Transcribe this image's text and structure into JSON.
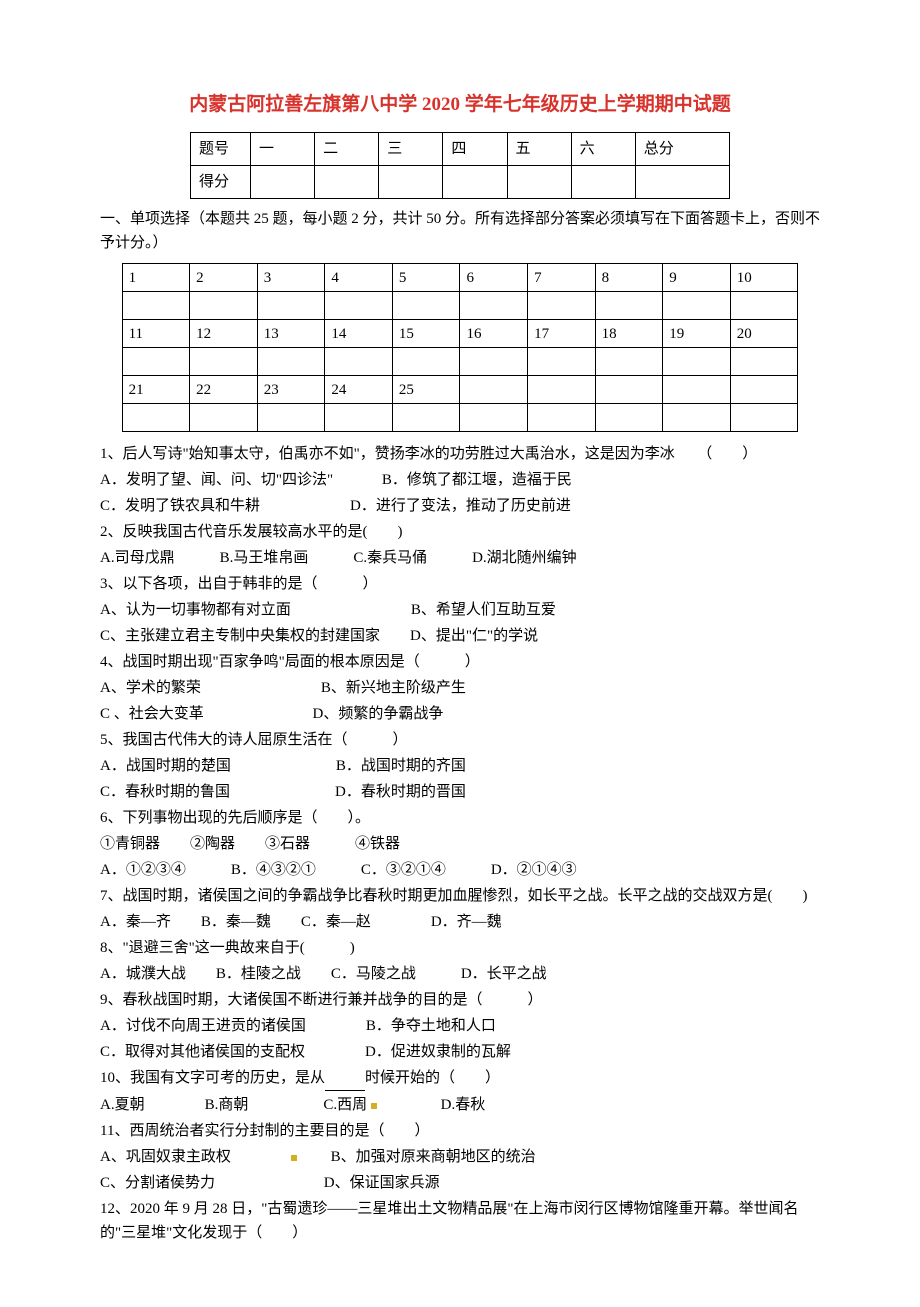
{
  "title": "内蒙古阿拉善左旗第八中学 2020 学年七年级历史上学期期中试题",
  "scoreTable": {
    "row1": [
      "题号",
      "一",
      "二",
      "三",
      "四",
      "五",
      "六",
      "总分"
    ],
    "row2Label": "得分"
  },
  "instruction": "一、单项选择（本题共 25 题，每小题 2 分，共计 50 分。所有选择部分答案必须填写在下面答题卡上，否则不予计分。）",
  "answerTable": {
    "row1": [
      "1",
      "2",
      "3",
      "4",
      "5",
      "6",
      "7",
      "8",
      "9",
      "10"
    ],
    "row2": [
      "11",
      "12",
      "13",
      "14",
      "15",
      "16",
      "17",
      "18",
      "19",
      "20"
    ],
    "row3": [
      "21",
      "22",
      "23",
      "24",
      "25"
    ]
  },
  "questions": [
    {
      "stem": "1、后人写诗\"始知事太守，伯禹亦不如\"，赞扬李冰的功劳胜过大禹治水，这是因为李冰　　（　　）",
      "opts": [
        "A．发明了望、闻、问、切\"四诊法\"　　　 B．修筑了都江堰，造福于民",
        "C．发明了铁农具和牛耕　　　　　　D．进行了变法，推动了历史前进"
      ]
    },
    {
      "stem": "2、反映我国古代音乐发展较高水平的是(　　)",
      "opts": [
        "A.司母戊鼎　　　B.马王堆帛画　　　C.秦兵马俑　　　D.湖北随州编钟"
      ]
    },
    {
      "stem": "3、以下各项，出自于韩非的是（　　　）",
      "opts": [
        "A、认为一切事物都有对立面　　　　　　　　B、希望人们互助互爱",
        "C、主张建立君主专制中央集权的封建国家　　D、提出\"仁\"的学说"
      ]
    },
    {
      "stem": "4、战国时期出现\"百家争鸣\"局面的根本原因是（　　　）",
      "opts": [
        "A、学术的繁荣　　　　　　　　B、新兴地主阶级产生",
        "C 、社会大变革　　　　　　　 D、频繁的争霸战争"
      ]
    },
    {
      "stem": "5、我国古代伟大的诗人屈原生活在（　　　）",
      "opts": [
        "A．战国时期的楚国　　　　　　　B．战国时期的齐国",
        "C．春秋时期的鲁国　　　　　　　D．春秋时期的晋国"
      ]
    },
    {
      "stem": "6、下列事物出现的先后顺序是（　　）。",
      "opts": [
        "①青铜器　　②陶器　　③石器　　　④铁器",
        "A．①②③④　　　B．④③②①　　　C．③②①④　　　D．②①④③"
      ]
    },
    {
      "stem": "7、战国时期，诸侯国之间的争霸战争比春秋时期更加血腥惨烈，如长平之战。长平之战的交战双方是(　　)",
      "opts": [
        "A．秦—齐　　B．秦—魏　　C．秦—赵　　　　D．齐—魏"
      ]
    },
    {
      "stem": "8、\"退避三舍\"这一典故来自于(　　　)",
      "opts": [
        "A．城濮大战　　B．桂陵之战　　C．马陵之战　　　D．长平之战"
      ]
    },
    {
      "stem": "9、春秋战国时期，大诸侯国不断进行兼并战争的目的是（　　　）",
      "opts": [
        "A．讨伐不向周王进贡的诸侯国　　　　B．争夺土地和人口",
        "C．取得对其他诸侯国的支配权　　　　D．促进奴隶制的瓦解"
      ]
    },
    {
      "stem": "10、我国有文字可考的历史，是从____时候开始的（　　）",
      "opts": [
        "A.夏朝　　　　B.商朝　　　　　C.西周　　 　　D.春秋"
      ]
    },
    {
      "stem": "11、西周统治者实行分封制的主要目的是（　　）",
      "opts": [
        "A、巩固奴隶主政权　　　　 　　B、加强对原来商朝地区的统治",
        "C、分割诸侯势力　　　　　　　 D、保证国家兵源"
      ]
    },
    {
      "stem": "12、2020 年 9 月 28 日，\"古蜀遗珍——三星堆出土文物精品展\"在上海市闵行区博物馆隆重开幕。举世闻名的\"三星堆\"文化发现于（　　）",
      "opts": []
    }
  ]
}
